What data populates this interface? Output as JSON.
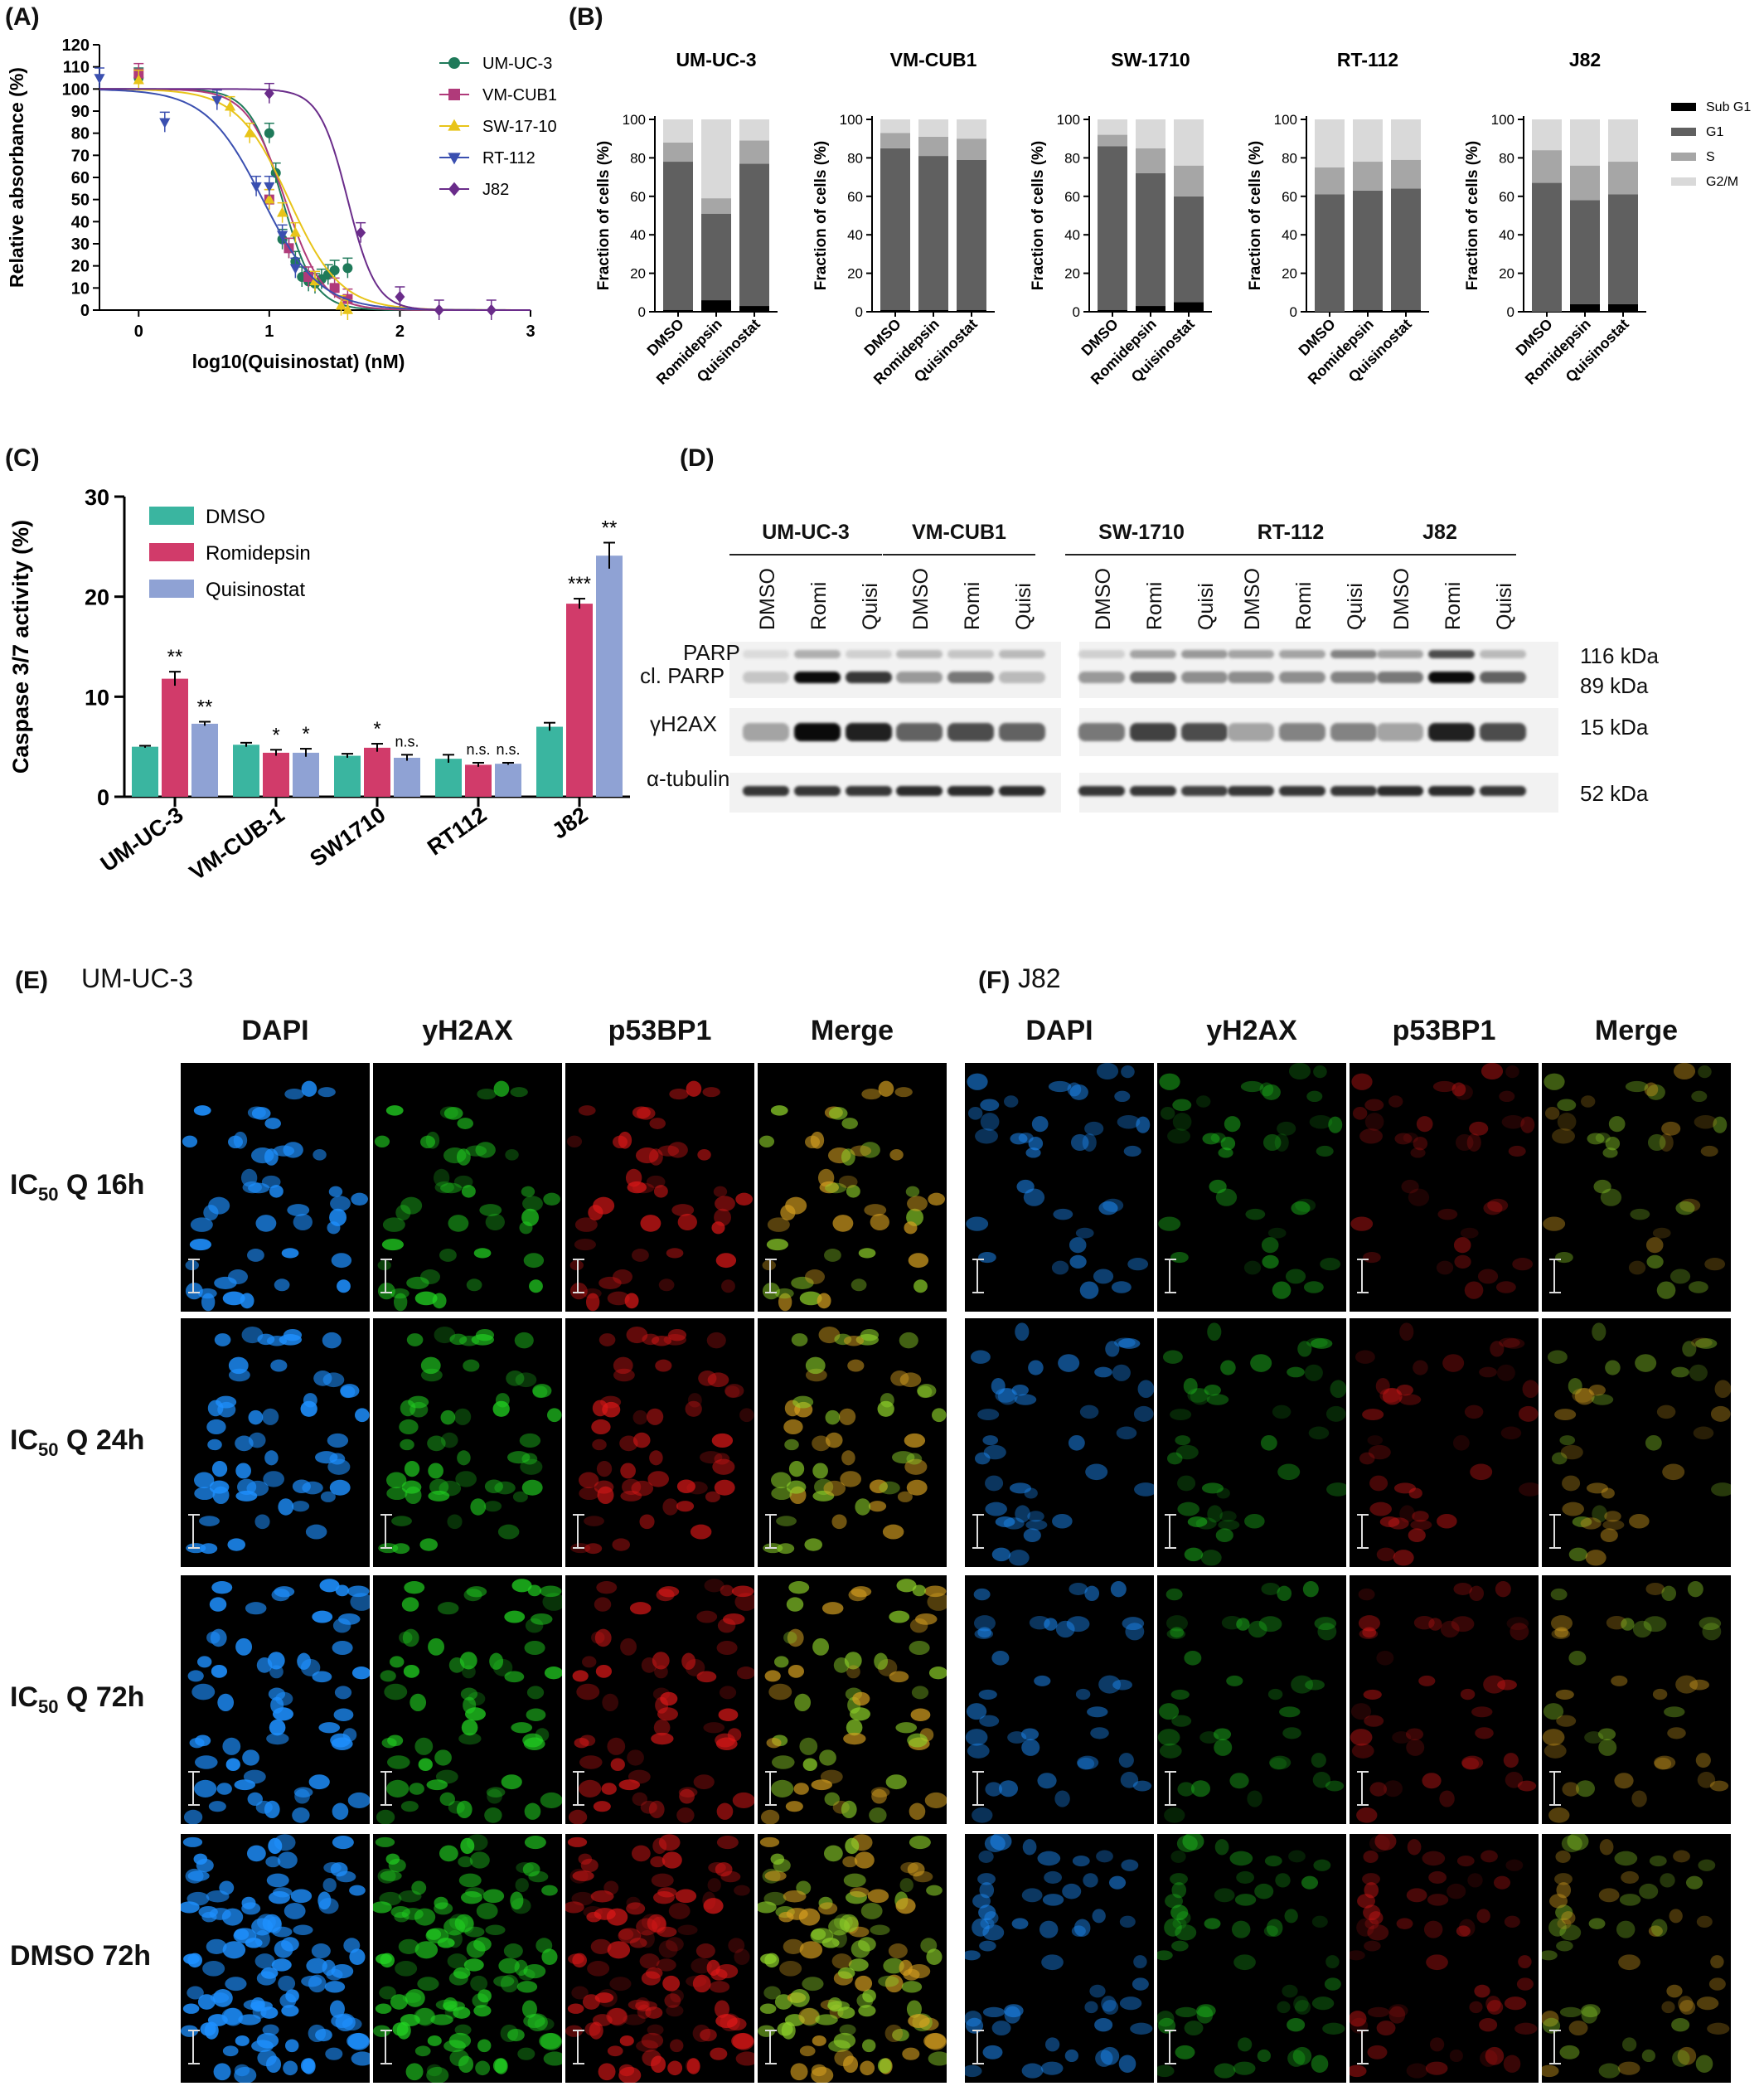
{
  "panels": {
    "A": {
      "label": "(A)"
    },
    "B": {
      "label": "(B)"
    },
    "C": {
      "label": "(C)"
    },
    "D": {
      "label": "(D)"
    },
    "E": {
      "label": "(E)",
      "subtitle": "UM-UC-3"
    },
    "F": {
      "label": "(F)",
      "subtitle": "J82"
    }
  },
  "chart_data": [
    {
      "id": "A",
      "type": "scatter",
      "ylabel": "Relative absorbance (%)",
      "xlabel": "log10(Quisinostat) (nM)",
      "xlim": [
        -0.3,
        3
      ],
      "ylim": [
        0,
        120
      ],
      "xticks": [
        "0",
        "1",
        "2",
        "3"
      ],
      "yticks": [
        "0",
        "10",
        "20",
        "30",
        "40",
        "50",
        "60",
        "70",
        "80",
        "90",
        "100",
        "110",
        "120"
      ],
      "legend_position": "top-right",
      "series": [
        {
          "name": "UM-UC-3",
          "color": "#1f7a5a",
          "marker": "circle",
          "ic50": 1.1,
          "hill": 3.5,
          "x": [
            0,
            1,
            1.05,
            1.1,
            1.15,
            1.2,
            1.25,
            1.3,
            1.35,
            1.4,
            1.45,
            1.5,
            1.6
          ],
          "y": [
            105,
            80,
            62,
            32,
            28,
            22,
            15,
            13,
            12,
            14,
            16,
            18,
            19
          ]
        },
        {
          "name": "VM-CUB1",
          "color": "#b03a7a",
          "marker": "square",
          "ic50": 1.12,
          "hill": 3,
          "x": [
            0,
            1,
            1.15,
            1.3,
            1.5,
            1.6
          ],
          "y": [
            107,
            50,
            28,
            15,
            10,
            5
          ]
        },
        {
          "name": "SW-17-10",
          "color": "#e8c419",
          "marker": "triangle",
          "ic50": 1.15,
          "hill": 2.2,
          "x": [
            0,
            0.7,
            0.85,
            1,
            1.1,
            1.2,
            1.35,
            1.55,
            1.6
          ],
          "y": [
            104,
            92,
            80,
            50,
            44,
            35,
            13,
            2,
            0
          ]
        },
        {
          "name": "RT-112",
          "color": "#3a4fb0",
          "marker": "triangle-down",
          "ic50": 0.95,
          "hill": 2,
          "x": [
            -0.3,
            0.2,
            0.6,
            0.9,
            1.0,
            1.1,
            1.2
          ],
          "y": [
            105,
            85,
            95,
            56,
            56,
            34,
            19
          ]
        },
        {
          "name": "J82",
          "color": "#6a2c8a",
          "marker": "diamond",
          "ic50": 1.6,
          "hill": 4,
          "x": [
            1,
            1.7,
            2.0,
            2.3,
            2.7
          ],
          "y": [
            98,
            35,
            6,
            0,
            0
          ]
        }
      ]
    },
    {
      "id": "B",
      "type": "bar",
      "stacked": true,
      "ylabel": "Fraction of cells (%)",
      "ylim": [
        0,
        100
      ],
      "yticks": [
        "0",
        "20",
        "40",
        "60",
        "80",
        "100"
      ],
      "categories": [
        "DMSO",
        "Romidepsin",
        "Quisinostat"
      ],
      "legend": [
        {
          "name": "Sub G1",
          "color": "#000000"
        },
        {
          "name": "G1",
          "color": "#606060"
        },
        {
          "name": "S",
          "color": "#a6a6a6"
        },
        {
          "name": "G2/M",
          "color": "#d9d9d9"
        }
      ],
      "legend_position": "right",
      "subplots": [
        {
          "title": "UM-UC-3",
          "subg1": [
            1,
            6,
            3
          ],
          "g1": [
            77,
            45,
            74
          ],
          "s": [
            10,
            8,
            12
          ],
          "g2m": [
            12,
            41,
            11
          ]
        },
        {
          "title": "VM-CUB1",
          "subg1": [
            1,
            1,
            1
          ],
          "g1": [
            84,
            80,
            78
          ],
          "s": [
            8,
            10,
            11
          ],
          "g2m": [
            7,
            9,
            10
          ]
        },
        {
          "title": "SW-1710",
          "subg1": [
            1,
            3,
            5
          ],
          "g1": [
            85,
            69,
            55
          ],
          "s": [
            6,
            13,
            16
          ],
          "g2m": [
            8,
            15,
            24
          ]
        },
        {
          "title": "RT-112",
          "subg1": [
            0,
            1,
            1
          ],
          "g1": [
            61,
            62,
            63
          ],
          "s": [
            14,
            15,
            15
          ],
          "g2m": [
            25,
            22,
            21
          ]
        },
        {
          "title": "J82",
          "subg1": [
            0,
            4,
            4
          ],
          "g1": [
            67,
            54,
            57
          ],
          "s": [
            17,
            18,
            17
          ],
          "g2m": [
            16,
            24,
            22
          ]
        }
      ]
    },
    {
      "id": "C",
      "type": "bar",
      "ylabel": "Caspase 3/7 activity (%)",
      "ylim": [
        0,
        30
      ],
      "yticks": [
        "0",
        "10",
        "20",
        "30"
      ],
      "categories": [
        "UM-UC-3",
        "VM-CUB-1",
        "SW1710",
        "RT112",
        "J82"
      ],
      "legend_position": "top-left",
      "series": [
        {
          "name": "DMSO",
          "color": "#3ab5a0",
          "values": [
            5.0,
            5.2,
            4.1,
            3.8,
            7.0
          ],
          "errors": [
            0.1,
            0.2,
            0.2,
            0.4,
            0.4
          ],
          "sig": [
            "",
            "",
            "",
            "",
            ""
          ]
        },
        {
          "name": "Romidepsin",
          "color": "#d13b6a",
          "values": [
            11.8,
            4.4,
            4.9,
            3.2,
            19.3
          ],
          "errors": [
            0.7,
            0.3,
            0.4,
            0.2,
            0.5
          ],
          "sig": [
            "**",
            "*",
            "*",
            "n.s.",
            "***"
          ]
        },
        {
          "name": "Quisinostat",
          "color": "#8fa2d4",
          "values": [
            7.3,
            4.4,
            3.9,
            3.3,
            24.1
          ],
          "errors": [
            0.2,
            0.4,
            0.3,
            0.1,
            1.3
          ],
          "sig": [
            "**",
            "*",
            "n.s.",
            "n.s.",
            "**"
          ]
        }
      ]
    }
  ],
  "blot": {
    "cell_lines": [
      "UM-UC-3",
      "VM-CUB1",
      "SW-1710",
      "RT-112",
      "J82"
    ],
    "lanes": [
      "DMSO",
      "Romi",
      "Quisi"
    ],
    "row_labels": {
      "parp": "PARP",
      "clparp": "cl. PARP",
      "h2ax": "γH2AX",
      "tubulin": "α-tubulin"
    },
    "mw": {
      "parp": "116 kDa",
      "clparp": "89 kDa",
      "h2ax": "15 kDa",
      "tubulin": "52 kDa"
    },
    "intensities": {
      "parp": [
        0.05,
        0.25,
        0.1,
        0.2,
        0.15,
        0.2,
        0.1,
        0.3,
        0.35,
        0.3,
        0.3,
        0.45,
        0.3,
        0.7,
        0.2
      ],
      "clparp": [
        0.15,
        1.0,
        0.8,
        0.35,
        0.5,
        0.2,
        0.35,
        0.55,
        0.4,
        0.4,
        0.4,
        0.45,
        0.5,
        1.0,
        0.6
      ],
      "h2ax": [
        0.3,
        1.0,
        0.9,
        0.6,
        0.7,
        0.6,
        0.5,
        0.75,
        0.7,
        0.3,
        0.45,
        0.45,
        0.3,
        0.9,
        0.7
      ],
      "tubulin": [
        0.8,
        0.8,
        0.8,
        0.85,
        0.85,
        0.85,
        0.8,
        0.8,
        0.75,
        0.8,
        0.8,
        0.8,
        0.85,
        0.85,
        0.8
      ]
    }
  },
  "micro": {
    "columns": [
      "DAPI",
      "yH2AX",
      "p53BP1",
      "Merge"
    ],
    "rows": [
      {
        "label_pre": "IC",
        "label_sub": "50",
        "label_post": " Q 16h"
      },
      {
        "label_pre": "IC",
        "label_sub": "50",
        "label_post": " Q 24h"
      },
      {
        "label_pre": "IC",
        "label_sub": "50",
        "label_post": " Q 72h"
      },
      {
        "label_pre": "",
        "label_sub": "",
        "label_post": "DMSO 72h"
      }
    ],
    "channel_colors": {
      "dapi": "#1e90ff",
      "h2ax": "#22d422",
      "p53": "#e01818"
    }
  }
}
